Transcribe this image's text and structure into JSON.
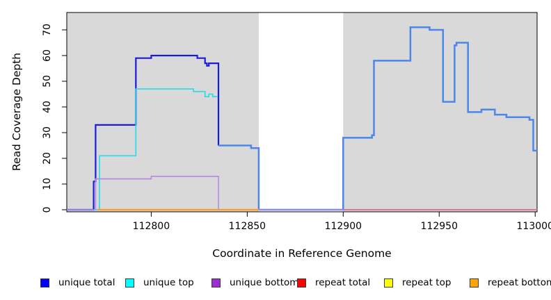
{
  "chart_data": {
    "type": "line",
    "subtype": "step-coverage-plot",
    "title": "",
    "xlabel": "Coordinate in Reference Genome",
    "ylabel": "Read Coverage Depth",
    "xlim": [
      112756,
      113001
    ],
    "ylim": [
      0,
      77
    ],
    "grid": false,
    "legend_position": "bottom",
    "axis_color": "#000000",
    "plot_bg": "#ffffff",
    "shaded_regions": [
      {
        "x0": 112756,
        "x1": 112856,
        "color": "#d9d9d9"
      },
      {
        "x0": 112900,
        "x1": 113001,
        "color": "#d9d9d9"
      }
    ],
    "x_ticks": [
      112800,
      112850,
      112900,
      112950,
      113000
    ],
    "x_tick_labels": [
      "112800",
      "112850",
      "112900",
      "112950",
      "113000"
    ],
    "y_ticks": [
      0,
      10,
      20,
      30,
      40,
      50,
      60,
      70
    ],
    "y_tick_labels": [
      "0",
      "10",
      "20",
      "30",
      "40",
      "50",
      "60",
      "70"
    ],
    "series": [
      {
        "id": "unique-total",
        "name": "unique total",
        "legend_color": "#0000ff",
        "steps": [
          [
            112756,
            0
          ],
          [
            112770,
            11
          ],
          [
            112771,
            33
          ],
          [
            112792,
            59
          ],
          [
            112800,
            60
          ],
          [
            112824,
            59
          ],
          [
            112828,
            57
          ],
          [
            112829,
            56
          ],
          [
            112830,
            57
          ],
          [
            112835,
            25
          ],
          [
            112852,
            24
          ],
          [
            112856,
            0
          ],
          [
            112900,
            28
          ],
          [
            112915,
            29
          ],
          [
            112916,
            58
          ],
          [
            112935,
            71
          ],
          [
            112945,
            70
          ],
          [
            112952,
            42
          ],
          [
            112958,
            64
          ],
          [
            112959,
            65
          ],
          [
            112965,
            38
          ],
          [
            112972,
            39
          ],
          [
            112979,
            37
          ],
          [
            112985,
            36
          ],
          [
            112997,
            35
          ],
          [
            112999,
            23
          ]
        ],
        "draw": [
          {
            "from": 112756,
            "to": 112835,
            "color": "#1b1be0",
            "width": 2.2
          },
          {
            "from": 112835,
            "to": 113001,
            "color": "#4d86e8",
            "width": 2.5
          }
        ]
      },
      {
        "id": "unique-top",
        "name": "unique top",
        "legend_color": "#00ffff",
        "steps": [
          [
            112756,
            0
          ],
          [
            112773,
            21
          ],
          [
            112792,
            47
          ],
          [
            112822,
            46
          ],
          [
            112828,
            44
          ],
          [
            112830,
            45
          ],
          [
            112832,
            44
          ],
          [
            112835,
            25
          ],
          [
            112852,
            24
          ],
          [
            112856,
            0
          ],
          [
            112900,
            28
          ],
          [
            112915,
            29
          ],
          [
            112916,
            58
          ],
          [
            112935,
            71
          ],
          [
            112945,
            70
          ],
          [
            112952,
            42
          ],
          [
            112958,
            64
          ],
          [
            112959,
            65
          ],
          [
            112965,
            38
          ],
          [
            112972,
            39
          ],
          [
            112979,
            37
          ],
          [
            112985,
            36
          ],
          [
            112997,
            35
          ],
          [
            112999,
            23
          ]
        ],
        "draw": [
          {
            "from": 112756,
            "to": 112834.7,
            "color": "#25dce8",
            "width": 1.6
          }
        ]
      },
      {
        "id": "unique-bottom",
        "name": "unique bottom",
        "legend_color": "#9b2fd6",
        "steps": [
          [
            112756,
            0
          ],
          [
            112771,
            12
          ],
          [
            112800,
            13
          ],
          [
            112835,
            0
          ]
        ],
        "draw": [
          {
            "from": 112756,
            "to": 113001,
            "color": "#b488e4",
            "width": 1.6
          }
        ]
      },
      {
        "id": "repeat-total",
        "name": "repeat total",
        "legend_color": "#ff0000",
        "steps": [
          [
            112756,
            0
          ]
        ],
        "draw": [
          {
            "from": 112900,
            "to": 113001,
            "color": "#e95e88",
            "width": 1.6
          }
        ]
      },
      {
        "id": "repeat-top",
        "name": "repeat top",
        "legend_color": "#ffff00",
        "steps": [
          [
            112756,
            0
          ]
        ],
        "draw": [
          {
            "from": 112772,
            "to": 112856,
            "color": "#f5e93d",
            "width": 1
          }
        ]
      },
      {
        "id": "repeat-bottom",
        "name": "repeat bottom",
        "legend_color": "#ffa500",
        "steps": [
          [
            112756,
            0
          ]
        ],
        "draw": [
          {
            "from": 112772,
            "to": 112856,
            "color": "#ff9b1f",
            "width": 2.2
          }
        ]
      }
    ]
  }
}
